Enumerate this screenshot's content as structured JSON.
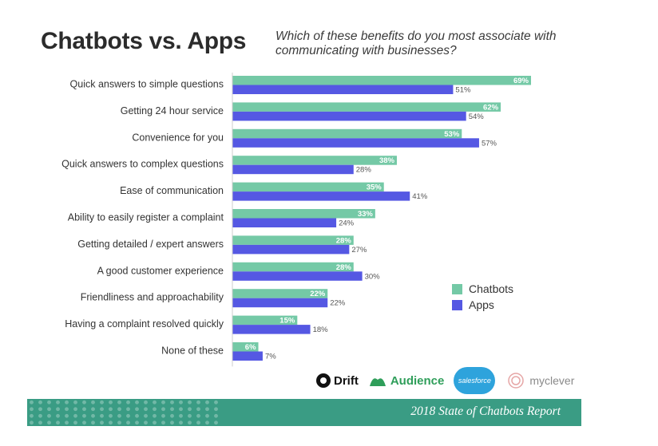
{
  "title": "Chatbots vs. Apps",
  "subtitle": "Which of these benefits do you most associate with communicating with businesses?",
  "colors": {
    "chatbots": "#74c9a6",
    "apps": "#5558e3",
    "banner": "#3a9c84"
  },
  "chart_data": {
    "type": "bar",
    "orientation": "horizontal",
    "categories": [
      "Quick answers to simple questions",
      "Getting 24 hour service",
      "Convenience for you",
      "Quick answers to complex questions",
      "Ease of communication",
      "Ability to easily register a complaint",
      "Getting detailed / expert answers",
      "A good customer experience",
      "Friendliness and approachability",
      "Having a complaint resolved quickly",
      "None of these"
    ],
    "series": [
      {
        "name": "Chatbots",
        "values": [
          69,
          62,
          53,
          38,
          35,
          33,
          28,
          28,
          22,
          15,
          6
        ]
      },
      {
        "name": "Apps",
        "values": [
          51,
          54,
          57,
          28,
          41,
          24,
          27,
          30,
          22,
          18,
          7
        ]
      }
    ],
    "value_suffix": "%",
    "xlim": [
      0,
      69
    ],
    "grid": false,
    "legend": "right"
  },
  "legend": {
    "items": [
      "Chatbots",
      "Apps"
    ]
  },
  "logos": {
    "drift": "Drift",
    "audience": "Audience",
    "salesforce": "salesforce",
    "myclever": "myclever"
  },
  "banner": {
    "text": "2018 State of Chatbots Report"
  }
}
